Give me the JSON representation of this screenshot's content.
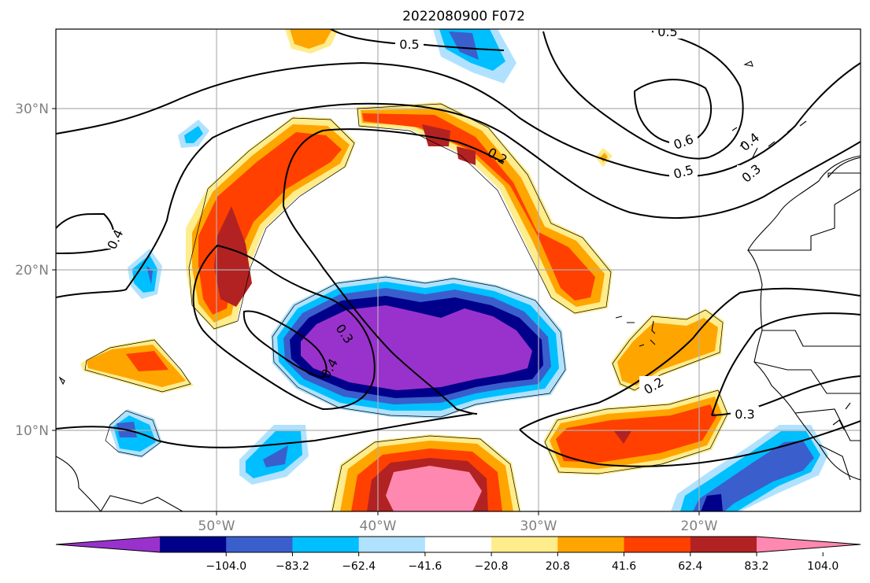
{
  "title": "2022080900 F072",
  "axes": {
    "lat_labels": [
      "30°N",
      "20°N",
      "10°N"
    ],
    "lon_labels": [
      "50°W",
      "40°W",
      "30°W",
      "20°W"
    ]
  },
  "colorbar": {
    "ticks": [
      "−104.0",
      "−83.2",
      "−62.4",
      "−41.6",
      "−20.8",
      "20.8",
      "41.6",
      "62.4",
      "83.2",
      "104.0"
    ],
    "colors": [
      "#9932cc",
      "#00008b",
      "#3a5fcd",
      "#00bfff",
      "#b0e2ff",
      "#ffffff",
      "#ffec8b",
      "#ffa500",
      "#ff4000",
      "#b22222",
      "#ff88b0"
    ]
  },
  "contour_labels": [
    {
      "text": "0.5"
    },
    {
      "text": "0.5"
    },
    {
      "text": "0.6"
    },
    {
      "text": "0.5"
    },
    {
      "text": "0.4"
    },
    {
      "text": "0.3"
    },
    {
      "text": "0.2"
    },
    {
      "text": "0.4"
    },
    {
      "text": "0.3"
    },
    {
      "text": "0.4"
    },
    {
      "text": "0.2"
    },
    {
      "text": "0.3"
    }
  ]
}
